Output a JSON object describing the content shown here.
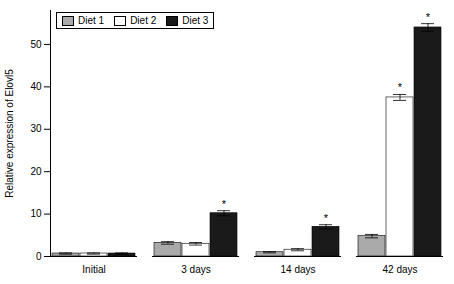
{
  "chart_data": {
    "type": "bar",
    "categories": [
      "Initial",
      "3 days",
      "14 days",
      "42 days"
    ],
    "series": [
      {
        "name": "Diet 1",
        "color": "#aaaaaa",
        "values": [
          0.7,
          3.2,
          1.0,
          4.8
        ],
        "errors": [
          0.15,
          0.3,
          0.15,
          0.4
        ]
      },
      {
        "name": "Diet 2",
        "color": "#ffffff",
        "values": [
          0.7,
          3.0,
          1.6,
          37.5
        ],
        "errors": [
          0.15,
          0.3,
          0.25,
          0.7
        ],
        "significant": [
          false,
          false,
          false,
          true
        ]
      },
      {
        "name": "Diet 3",
        "color": "#1a1a1a",
        "values": [
          0.7,
          10.2,
          7.0,
          54.0
        ],
        "errors": [
          0.15,
          0.6,
          0.5,
          0.9
        ],
        "significant": [
          false,
          true,
          true,
          true
        ]
      }
    ],
    "annotation": "*",
    "ylabel": "Relative expression of Elovl5",
    "ylim": [
      0,
      58
    ],
    "yticks": [
      0,
      10,
      20,
      30,
      40,
      50
    ],
    "legend": "upper left",
    "grid": false
  }
}
